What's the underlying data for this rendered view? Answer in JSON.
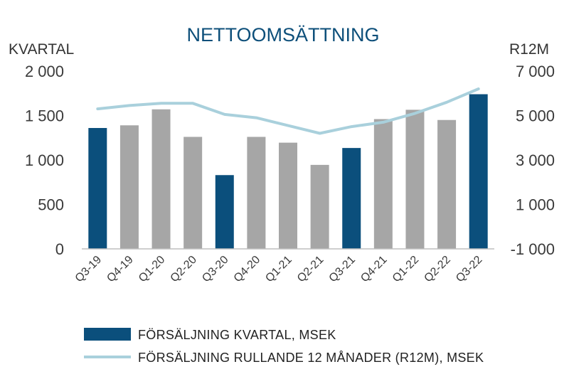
{
  "colors": {
    "bar_highlight": "#0b4f7c",
    "bar_regular": "#a6a6a6",
    "line": "#a9d0dc",
    "title": "#0d4f7a",
    "axis_line": "#bfbfbf"
  },
  "chart_data": {
    "type": "bar",
    "title": "NETTOOMSÄTTNING",
    "y_left_label": "KVARTAL",
    "y_right_label": "R12M",
    "categories": [
      "Q3-19",
      "Q4-19",
      "Q1-20",
      "Q2-20",
      "Q3-20",
      "Q4-20",
      "Q1-21",
      "Q2-21",
      "Q3-21",
      "Q4-21",
      "Q1-22",
      "Q2-22",
      "Q3-22"
    ],
    "y_left": {
      "min": 0,
      "max": 2000,
      "ticks": [
        0,
        500,
        1000,
        1500,
        2000
      ],
      "tick_labels": [
        "0",
        "500",
        "1 000",
        "1 500",
        "2 000"
      ]
    },
    "y_right": {
      "min": -1000,
      "max": 7000,
      "ticks": [
        -1000,
        1000,
        3000,
        5000,
        7000
      ],
      "tick_labels": [
        "-1 000",
        "1 000",
        "3 000",
        "5 000",
        "7 000"
      ]
    },
    "series": [
      {
        "name": "FÖRSÄLJNING KVARTAL, MSEK",
        "type": "bar",
        "axis": "left",
        "values": [
          1360,
          1390,
          1570,
          1260,
          830,
          1260,
          1195,
          945,
          1135,
          1460,
          1565,
          1450,
          1740
        ],
        "highlight": [
          true,
          false,
          false,
          false,
          true,
          false,
          false,
          false,
          true,
          false,
          false,
          false,
          true
        ]
      },
      {
        "name": "FÖRSÄLJNING RULLANDE 12 MÅNADER (R12M), MSEK",
        "type": "line",
        "axis": "right",
        "values": [
          5300,
          5450,
          5550,
          5550,
          5050,
          4900,
          4550,
          4200,
          4500,
          4700,
          5100,
          5600,
          6200
        ]
      }
    ],
    "grid": false,
    "legend_position": "bottom"
  }
}
